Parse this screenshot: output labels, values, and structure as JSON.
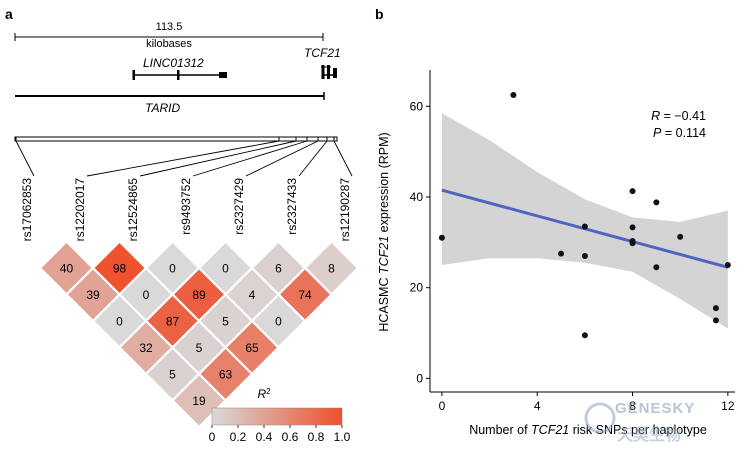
{
  "panel_a": {
    "label": "a",
    "scale_value": "113.5",
    "scale_unit": "kilobases",
    "genes": {
      "linc": "LINC01312",
      "tcf21": "TCF21",
      "tarid": "TARID"
    },
    "snps": [
      "rs17062853",
      "rs12202017",
      "rs12524865",
      "rs9493752",
      "rs2327429",
      "rs2327433",
      "rs12190287"
    ],
    "ld_r2": [
      [
        40,
        98,
        0,
        0,
        6,
        8
      ],
      [
        39,
        0,
        89,
        4,
        74
      ],
      [
        0,
        87,
        5,
        0
      ],
      [
        32,
        5,
        65
      ],
      [
        5,
        63
      ],
      [
        19
      ]
    ],
    "colorbar": {
      "title": "R",
      "title_sup": "2",
      "ticks": [
        "0",
        "0.2",
        "0.4",
        "0.6",
        "0.8",
        "1.0"
      ],
      "low_color": "#d9d9d9",
      "high_color": "#ee4f2c"
    }
  },
  "panel_b": {
    "label": "b"
  },
  "chart_data": {
    "type": "scatter",
    "xlabel_pre": "Number of ",
    "xlabel_italic": "TCF21",
    "xlabel_post": " risk SNPs per haplotype",
    "ylabel_pre": "HCASMC ",
    "ylabel_italic": "TCF21",
    "ylabel_post": " expression (RPM)",
    "xlim": [
      -0.5,
      12.3
    ],
    "ylim": [
      -3,
      68
    ],
    "xticks": [
      0,
      4,
      8,
      12
    ],
    "yticks": [
      0,
      20,
      40,
      60
    ],
    "points": [
      {
        "x": 0,
        "y": 31
      },
      {
        "x": 3,
        "y": 62.5
      },
      {
        "x": 5,
        "y": 27.5
      },
      {
        "x": 6,
        "y": 33.5
      },
      {
        "x": 6,
        "y": 27
      },
      {
        "x": 6,
        "y": 9.5
      },
      {
        "x": 8,
        "y": 41.3
      },
      {
        "x": 8,
        "y": 33.3
      },
      {
        "x": 8,
        "y": 30.3
      },
      {
        "x": 8,
        "y": 29.8
      },
      {
        "x": 9,
        "y": 38.8
      },
      {
        "x": 9,
        "y": 24.5
      },
      {
        "x": 10,
        "y": 31.2
      },
      {
        "x": 11.5,
        "y": 15.5
      },
      {
        "x": 11.5,
        "y": 12.8
      },
      {
        "x": 12,
        "y": 25
      }
    ],
    "fit": {
      "x0": 0,
      "y0": 41.5,
      "x1": 12,
      "y1": 24.5,
      "color": "#4f63c0"
    },
    "ci_upper": [
      [
        0,
        58.5
      ],
      [
        2,
        52.5
      ],
      [
        4,
        45.5
      ],
      [
        6,
        39.5
      ],
      [
        8,
        35.5
      ],
      [
        10,
        34.5
      ],
      [
        12,
        37
      ]
    ],
    "ci_lower": [
      [
        0,
        25
      ],
      [
        2,
        26.5
      ],
      [
        4,
        26.5
      ],
      [
        6,
        25.5
      ],
      [
        8,
        23.5
      ],
      [
        10,
        17.5
      ],
      [
        12,
        11
      ]
    ],
    "band_color": "#d4d4d4",
    "annotation": {
      "r_label": "R",
      "r_value": " = −0.41",
      "p_label": "P",
      "p_value": " = 0.114"
    }
  },
  "watermark": {
    "brand": "GENESKY",
    "chinese": "天昊生物"
  }
}
